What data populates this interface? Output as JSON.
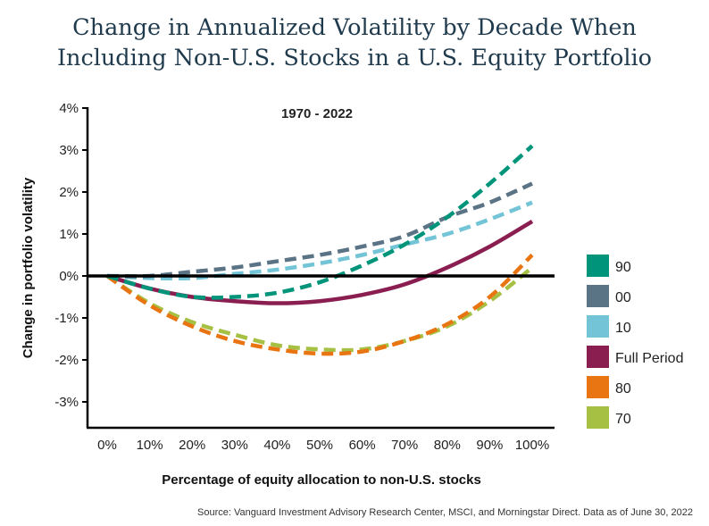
{
  "chart_data": {
    "type": "line",
    "title": "Change in Annualized Volatility by Decade When Including Non-U.S. Stocks in a U.S. Equity Portfolio",
    "title_lines": [
      "Change in Annualized Volatility by Decade When",
      "Including Non-U.S. Stocks in a U.S. Equity Portfolio"
    ],
    "subtitle": "1970 - 2022",
    "xlabel": "Percentage of equity allocation to non-U.S. stocks",
    "ylabel": "Change in portfolio volatility",
    "x": [
      0,
      10,
      20,
      30,
      40,
      50,
      60,
      70,
      80,
      90,
      100
    ],
    "x_tick_labels": [
      "0%",
      "10%",
      "20%",
      "30%",
      "40%",
      "50%",
      "60%",
      "70%",
      "80%",
      "90%",
      "100%"
    ],
    "y_ticks": [
      4,
      3,
      2,
      1,
      0,
      -1,
      -2,
      -3
    ],
    "y_tick_labels": [
      "4%",
      "3%",
      "2%",
      "1%",
      "0%",
      "-1%",
      "-2%",
      "-3%"
    ],
    "ylim": [
      -3.6,
      4
    ],
    "xlim": [
      -4.5,
      105
    ],
    "legend_position": "right",
    "series": [
      {
        "name": "90",
        "color": "#00957a",
        "dashed": true,
        "values": [
          0,
          -0.3,
          -0.5,
          -0.5,
          -0.4,
          -0.15,
          0.25,
          0.75,
          1.4,
          2.2,
          3.1
        ]
      },
      {
        "name": "00",
        "color": "#5a7385",
        "dashed": true,
        "values": [
          0,
          0,
          0.1,
          0.2,
          0.35,
          0.5,
          0.7,
          0.95,
          1.4,
          1.75,
          2.2
        ]
      },
      {
        "name": "10",
        "color": "#72c4d6",
        "dashed": true,
        "values": [
          0,
          -0.05,
          -0.05,
          0.05,
          0.15,
          0.3,
          0.5,
          0.75,
          1.0,
          1.35,
          1.75
        ]
      },
      {
        "name": "Full Period",
        "color": "#8a1e50",
        "dashed": false,
        "values": [
          0,
          -0.3,
          -0.5,
          -0.6,
          -0.65,
          -0.6,
          -0.45,
          -0.2,
          0.2,
          0.7,
          1.3
        ]
      },
      {
        "name": "80",
        "color": "#e87511",
        "dashed": true,
        "values": [
          0,
          -0.7,
          -1.2,
          -1.55,
          -1.75,
          -1.85,
          -1.8,
          -1.55,
          -1.15,
          -0.5,
          0.5
        ]
      },
      {
        "name": "70",
        "color": "#a6c043",
        "dashed": true,
        "values": [
          0,
          -0.65,
          -1.1,
          -1.4,
          -1.65,
          -1.75,
          -1.75,
          -1.55,
          -1.2,
          -0.6,
          0.2
        ]
      }
    ],
    "source": "Source: Vanguard Investment Advisory Research Center, MSCI, and Morningstar Direct. Data as of June 30, 2022"
  }
}
